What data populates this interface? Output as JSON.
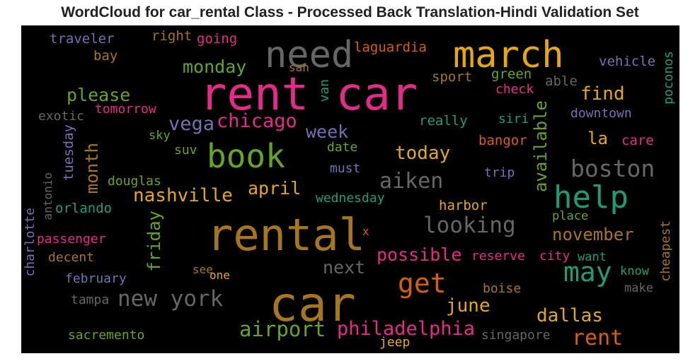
{
  "title": "WordCloud for car_rental Class - Processed Back Translation-Hindi Validation Set",
  "background_color": "#000000",
  "words": [
    {
      "text": "rent car",
      "color": "#e7298a"
    },
    {
      "text": "rental",
      "color": "#a6761d"
    },
    {
      "text": "car",
      "color": "#a6761d"
    },
    {
      "text": "need",
      "color": "#666666"
    },
    {
      "text": "march",
      "color": "#e6ab02"
    },
    {
      "text": "book",
      "color": "#66a61e"
    },
    {
      "text": "help",
      "color": "#1b9e77"
    },
    {
      "text": "may",
      "color": "#1b9e77"
    },
    {
      "text": "boston",
      "color": "#666666"
    },
    {
      "text": "looking",
      "color": "#666666"
    },
    {
      "text": "new york",
      "color": "#666666"
    },
    {
      "text": "get",
      "color": "#d95f02"
    },
    {
      "text": "airport",
      "color": "#66a61e"
    },
    {
      "text": "philadelphia",
      "color": "#e7298a"
    },
    {
      "text": "aiken",
      "color": "#666666"
    },
    {
      "text": "nashville",
      "color": "#e6ab02"
    },
    {
      "text": "chicago",
      "color": "#e7298a"
    },
    {
      "text": "vega",
      "color": "#7570b3"
    },
    {
      "text": "rent",
      "color": "#d95f02"
    },
    {
      "text": "dallas",
      "color": "#e6ab02"
    },
    {
      "text": "june",
      "color": "#e6ab02"
    },
    {
      "text": "today",
      "color": "#e6ab02"
    },
    {
      "text": "november",
      "color": "#a6761d"
    },
    {
      "text": "possible",
      "color": "#e7298a"
    },
    {
      "text": "april",
      "color": "#e6ab02"
    },
    {
      "text": "find",
      "color": "#e6ab02"
    },
    {
      "text": "please",
      "color": "#66a61e"
    },
    {
      "text": "monday",
      "color": "#66a61e"
    },
    {
      "text": "week",
      "color": "#7570b3"
    },
    {
      "text": "next",
      "color": "#666666"
    },
    {
      "text": "month",
      "color": "#a6761d"
    },
    {
      "text": "friday",
      "color": "#66a61e"
    },
    {
      "text": "available",
      "color": "#66a61e"
    },
    {
      "text": "la",
      "color": "#e6ab02"
    },
    {
      "text": "traveler",
      "color": "#7570b3"
    },
    {
      "text": "right",
      "color": "#a6761d"
    },
    {
      "text": "going",
      "color": "#e7298a"
    },
    {
      "text": "laguardia",
      "color": "#d95f02"
    },
    {
      "text": "bay",
      "color": "#a6761d"
    },
    {
      "text": "san",
      "color": "#a6761d"
    },
    {
      "text": "sport",
      "color": "#a6761d"
    },
    {
      "text": "green",
      "color": "#66a61e"
    },
    {
      "text": "able",
      "color": "#666666"
    },
    {
      "text": "vehicle",
      "color": "#7570b3"
    },
    {
      "text": "poconos",
      "color": "#1b9e77"
    },
    {
      "text": "check",
      "color": "#e7298a"
    },
    {
      "text": "van",
      "color": "#1b9e77"
    },
    {
      "text": "exotic",
      "color": "#666666"
    },
    {
      "text": "tomorrow",
      "color": "#e7298a"
    },
    {
      "text": "siri",
      "color": "#1b9e77"
    },
    {
      "text": "downtown",
      "color": "#7570b3"
    },
    {
      "text": "really",
      "color": "#1b9e77"
    },
    {
      "text": "sky",
      "color": "#66a61e"
    },
    {
      "text": "tuesday",
      "color": "#7570b3"
    },
    {
      "text": "suv",
      "color": "#66a61e"
    },
    {
      "text": "date",
      "color": "#66a61e"
    },
    {
      "text": "bangor",
      "color": "#d95f02"
    },
    {
      "text": "care",
      "color": "#e7298a"
    },
    {
      "text": "must",
      "color": "#7570b3"
    },
    {
      "text": "trip",
      "color": "#7570b3"
    },
    {
      "text": "douglas",
      "color": "#66a61e"
    },
    {
      "text": "antonio",
      "color": "#666666"
    },
    {
      "text": "orlando",
      "color": "#1b9e77"
    },
    {
      "text": "wednesday",
      "color": "#1b9e77"
    },
    {
      "text": "harbor",
      "color": "#e6ab02"
    },
    {
      "text": "place",
      "color": "#66a61e"
    },
    {
      "text": "charlotte",
      "color": "#7570b3"
    },
    {
      "text": "passenger",
      "color": "#e7298a"
    },
    {
      "text": "x",
      "color": "#d95f02"
    },
    {
      "text": "cheapest",
      "color": "#a6761d"
    },
    {
      "text": "decent",
      "color": "#a6761d"
    },
    {
      "text": "reserve",
      "color": "#e7298a"
    },
    {
      "text": "city",
      "color": "#e7298a"
    },
    {
      "text": "want",
      "color": "#1b9e77"
    },
    {
      "text": "see",
      "color": "#a6761d"
    },
    {
      "text": "one",
      "color": "#e6ab02"
    },
    {
      "text": "february",
      "color": "#7570b3"
    },
    {
      "text": "know",
      "color": "#1b9e77"
    },
    {
      "text": "make",
      "color": "#666666"
    },
    {
      "text": "tampa",
      "color": "#666666"
    },
    {
      "text": "boise",
      "color": "#a6761d"
    },
    {
      "text": "sacremento",
      "color": "#66a61e"
    },
    {
      "text": "singapore",
      "color": "#666666"
    },
    {
      "text": "jeep",
      "color": "#e6ab02"
    }
  ]
}
